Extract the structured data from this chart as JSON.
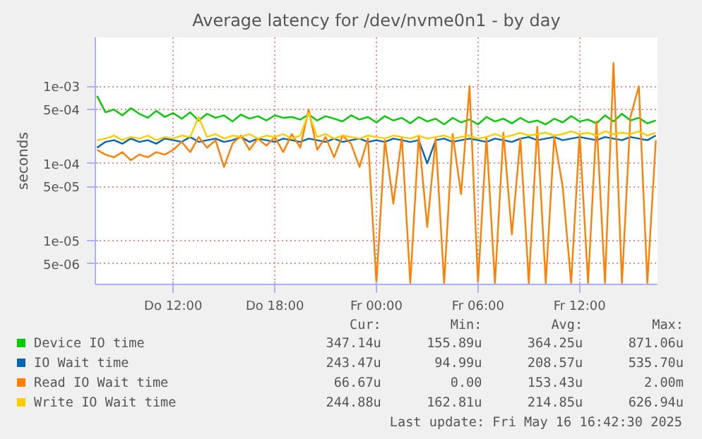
{
  "chart_data": {
    "type": "line",
    "title": "Average latency for /dev/nvme0n1 - by day",
    "ylabel": "seconds",
    "log": true,
    "grid": true,
    "legend": "bottom",
    "marker": "none",
    "line_style": "solid",
    "x": [
      "2025-05-15T07:30",
      "2025-05-15T08:00",
      "2025-05-15T08:30",
      "2025-05-15T09:00",
      "2025-05-15T09:30",
      "2025-05-15T10:00",
      "2025-05-15T10:30",
      "2025-05-15T11:00",
      "2025-05-15T11:30",
      "2025-05-15T12:00",
      "2025-05-15T12:30",
      "2025-05-15T13:00",
      "2025-05-15T13:30",
      "2025-05-15T14:00",
      "2025-05-15T14:30",
      "2025-05-15T15:00",
      "2025-05-15T15:30",
      "2025-05-15T16:00",
      "2025-05-15T16:30",
      "2025-05-15T17:00",
      "2025-05-15T17:30",
      "2025-05-15T18:00",
      "2025-05-15T18:30",
      "2025-05-15T19:00",
      "2025-05-15T19:30",
      "2025-05-15T20:00",
      "2025-05-15T20:30",
      "2025-05-15T21:00",
      "2025-05-15T21:30",
      "2025-05-15T22:00",
      "2025-05-15T22:30",
      "2025-05-15T23:00",
      "2025-05-15T23:30",
      "2025-05-16T00:00",
      "2025-05-16T00:30",
      "2025-05-16T01:00",
      "2025-05-16T01:30",
      "2025-05-16T02:00",
      "2025-05-16T02:30",
      "2025-05-16T03:00",
      "2025-05-16T03:30",
      "2025-05-16T04:00",
      "2025-05-16T04:30",
      "2025-05-16T05:00",
      "2025-05-16T05:30",
      "2025-05-16T06:00",
      "2025-05-16T06:30",
      "2025-05-16T07:00",
      "2025-05-16T07:30",
      "2025-05-16T08:00",
      "2025-05-16T08:30",
      "2025-05-16T09:00",
      "2025-05-16T09:30",
      "2025-05-16T10:00",
      "2025-05-16T10:30",
      "2025-05-16T11:00",
      "2025-05-16T11:30",
      "2025-05-16T12:00",
      "2025-05-16T12:30",
      "2025-05-16T13:00",
      "2025-05-16T13:30",
      "2025-05-16T14:00",
      "2025-05-16T14:30",
      "2025-05-16T15:00",
      "2025-05-16T15:30",
      "2025-05-16T16:00",
      "2025-05-16T16:30"
    ],
    "xlim": [
      "2025-05-15T07:24",
      "2025-05-16T16:36"
    ],
    "xticks": [
      {
        "value": "2025-05-15T12:00",
        "label": "Do 12:00"
      },
      {
        "value": "2025-05-15T18:00",
        "label": "Do 18:00"
      },
      {
        "value": "2025-05-16T00:00",
        "label": "Fr 00:00"
      },
      {
        "value": "2025-05-16T06:00",
        "label": "Fr 06:00"
      },
      {
        "value": "2025-05-16T12:00",
        "label": "Fr 12:00"
      }
    ],
    "ylim": [
      2.7e-06,
      0.0043
    ],
    "yticks": [
      {
        "value": 5e-06,
        "label": "5e-06"
      },
      {
        "value": 1e-05,
        "label": "1e-05"
      },
      {
        "value": 5e-05,
        "label": "5e-05"
      },
      {
        "value": 0.0001,
        "label": "1e-04"
      },
      {
        "value": 0.0005,
        "label": "5e-04"
      },
      {
        "value": 0.001,
        "label": "1e-03"
      }
    ],
    "series": [
      {
        "name": "Device IO time",
        "color": "#00cc00",
        "values": [
          0.00075,
          0.00046,
          0.0005,
          0.00042,
          0.00052,
          0.00044,
          0.00039,
          0.00048,
          0.0004,
          0.00045,
          0.00038,
          0.00046,
          0.00036,
          0.00044,
          0.00039,
          0.00042,
          0.00035,
          0.00043,
          0.00038,
          0.00041,
          0.00036,
          0.00042,
          0.00039,
          0.0004,
          0.00037,
          0.00043,
          0.00036,
          0.00041,
          0.00038,
          0.00035,
          0.00042,
          0.00037,
          0.0004,
          0.00034,
          0.00041,
          0.00036,
          0.00039,
          0.00033,
          0.0004,
          0.00035,
          0.00038,
          0.00032,
          0.00039,
          0.00034,
          0.00037,
          0.00032,
          0.0004,
          0.00035,
          0.00038,
          0.00033,
          0.00039,
          0.00034,
          0.00036,
          0.00032,
          0.00038,
          0.00034,
          0.00041,
          0.00035,
          0.00037,
          0.00033,
          0.00042,
          0.00035,
          0.00044,
          0.00036,
          0.00039,
          0.00033,
          0.00036
        ]
      },
      {
        "name": "IO Wait time",
        "color": "#0066b3",
        "values": [
          0.00016,
          0.00019,
          0.0002,
          0.00018,
          0.00021,
          0.00019,
          0.0002,
          0.00018,
          0.00021,
          0.0002,
          0.00019,
          0.00022,
          0.00019,
          0.0002,
          0.00021,
          0.00019,
          0.0002,
          0.00022,
          0.00019,
          0.00021,
          0.0002,
          0.00019,
          0.00021,
          0.0002,
          0.00019,
          0.00021,
          0.0002,
          0.00019,
          0.00021,
          0.00019,
          0.0002,
          0.00021,
          0.00019,
          0.0002,
          0.00019,
          0.00021,
          0.0002,
          0.00019,
          0.0002,
          0.0001,
          0.0002,
          0.00021,
          0.00019,
          0.0002,
          0.00021,
          0.0002,
          0.00019,
          0.00021,
          0.0002,
          0.00019,
          0.00021,
          0.00022,
          0.0002,
          0.00021,
          0.00022,
          0.0002,
          0.00021,
          0.00022,
          0.00021,
          0.0002,
          0.00022,
          0.00021,
          0.0002,
          0.00022,
          0.00021,
          0.0002,
          0.00023
        ]
      },
      {
        "name": "Read IO Wait time",
        "color": "#ff8000",
        "values": [
          0.00015,
          0.00013,
          0.00012,
          0.00014,
          0.00011,
          0.00013,
          0.00012,
          0.00014,
          0.00013,
          0.00015,
          0.00019,
          0.00014,
          0.00022,
          0.00016,
          0.0002,
          9e-05,
          0.00018,
          0.00023,
          0.00015,
          0.00021,
          0.00017,
          0.00022,
          0.00014,
          0.00024,
          0.00016,
          0.0005,
          0.00015,
          0.00022,
          0.00012,
          0.00023,
          0.00018,
          9e-05,
          0.00021,
          2.8e-06,
          0.0002,
          3e-05,
          0.00022,
          2.8e-06,
          0.00023,
          1.5e-05,
          0.00021,
          2.8e-06,
          0.00024,
          4e-05,
          0.001,
          2.8e-06,
          0.00022,
          2.8e-06,
          0.00025,
          1.2e-05,
          0.00021,
          2.8e-06,
          0.0003,
          2.8e-06,
          0.00022,
          5e-05,
          2.8e-06,
          0.00024,
          2.8e-06,
          0.00035,
          2.8e-06,
          0.002,
          2.8e-06,
          0.0004,
          0.001,
          2.8e-06,
          0.0002
        ]
      },
      {
        "name": "Write IO Wait time",
        "color": "#ffcc00",
        "values": [
          0.0002,
          0.00021,
          0.00023,
          0.0002,
          0.00022,
          0.00021,
          0.00023,
          0.0002,
          0.00022,
          0.00021,
          0.00023,
          0.00022,
          0.0004,
          0.00022,
          0.00024,
          0.00021,
          0.00023,
          0.00022,
          0.00024,
          0.00021,
          0.00023,
          0.00022,
          0.00024,
          0.00021,
          0.00023,
          0.00045,
          0.00022,
          0.00024,
          0.00021,
          0.00023,
          0.00022,
          0.00021,
          0.00023,
          0.00022,
          0.00021,
          0.00023,
          0.00022,
          0.00021,
          0.00023,
          0.00021,
          0.00022,
          0.00023,
          0.00021,
          0.00022,
          0.00023,
          0.00021,
          0.00022,
          0.00024,
          0.00022,
          0.00023,
          0.00025,
          0.00023,
          0.00024,
          0.00025,
          0.00023,
          0.00024,
          0.00026,
          0.00024,
          0.00025,
          0.00023,
          0.00026,
          0.00024,
          0.00025,
          0.00024,
          0.00026,
          0.00023,
          0.00025
        ]
      }
    ],
    "annotations": [
      "Cur:",
      "Min:",
      "Avg:",
      "Max:",
      "347.14u",
      "155.89u",
      "364.25u",
      "871.06u",
      "243.47u",
      "94.99u",
      "208.57u",
      "535.70u",
      "66.67u",
      "0.00",
      "153.43u",
      "2.00m",
      "244.88u",
      "162.81u",
      "214.85u",
      "626.94u",
      "Last update: Fri May 16 16:42:30 2025"
    ]
  }
}
